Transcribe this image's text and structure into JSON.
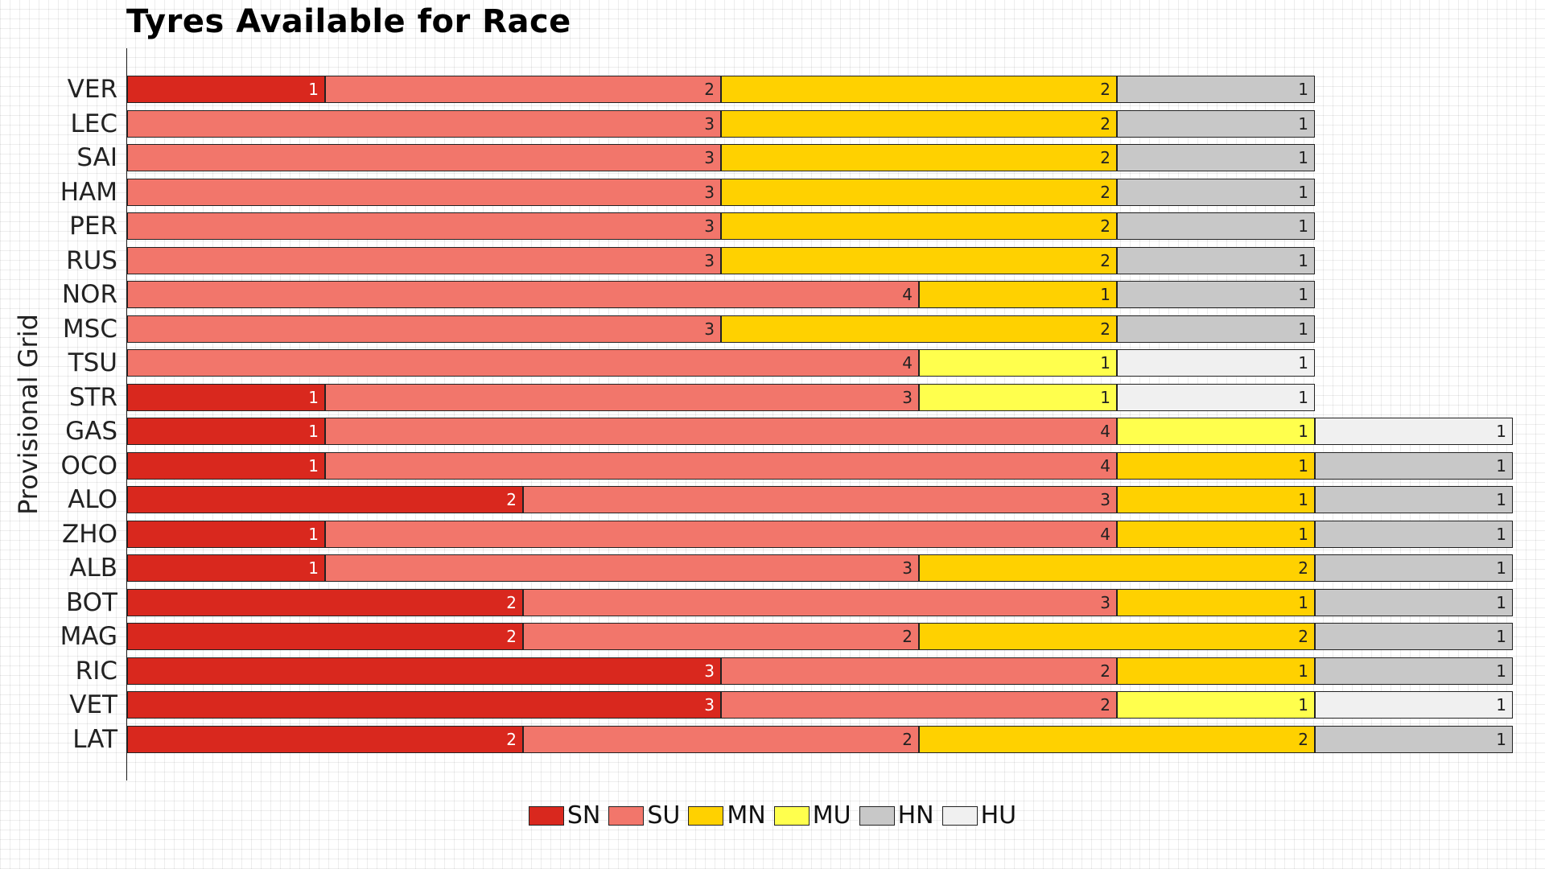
{
  "chart_data": {
    "type": "bar",
    "orientation": "horizontal-stacked",
    "title": "Tyres Available for Race",
    "ylabel": "Provisional Grid",
    "xlabel": "",
    "legend": {
      "placement": "bottom",
      "entries": [
        "SN",
        "SU",
        "MN",
        "MU",
        "HN",
        "HU"
      ]
    },
    "colors": {
      "SN": "#d9281e",
      "SU": "#f2766b",
      "MN": "#ffd100",
      "MU": "#ffff4d",
      "HN": "#c8c8c8",
      "HU": "#f0f0f0"
    },
    "xlim": [
      0,
      7
    ],
    "grid": false,
    "categories": [
      "VER",
      "LEC",
      "SAI",
      "HAM",
      "PER",
      "RUS",
      "NOR",
      "MSC",
      "TSU",
      "STR",
      "GAS",
      "OCO",
      "ALO",
      "ZHO",
      "ALB",
      "BOT",
      "MAG",
      "RIC",
      "VET",
      "LAT"
    ],
    "rows": [
      [
        [
          "SN",
          1
        ],
        [
          "SU",
          2
        ],
        [
          "MN",
          2
        ],
        [
          "HN",
          1
        ]
      ],
      [
        [
          "SU",
          3
        ],
        [
          "MN",
          2
        ],
        [
          "HN",
          1
        ]
      ],
      [
        [
          "SU",
          3
        ],
        [
          "MN",
          2
        ],
        [
          "HN",
          1
        ]
      ],
      [
        [
          "SU",
          3
        ],
        [
          "MN",
          2
        ],
        [
          "HN",
          1
        ]
      ],
      [
        [
          "SU",
          3
        ],
        [
          "MN",
          2
        ],
        [
          "HN",
          1
        ]
      ],
      [
        [
          "SU",
          3
        ],
        [
          "MN",
          2
        ],
        [
          "HN",
          1
        ]
      ],
      [
        [
          "SU",
          4
        ],
        [
          "MN",
          1
        ],
        [
          "HN",
          1
        ]
      ],
      [
        [
          "SU",
          3
        ],
        [
          "MN",
          2
        ],
        [
          "HN",
          1
        ]
      ],
      [
        [
          "SU",
          4
        ],
        [
          "MU",
          1
        ],
        [
          "HU",
          1
        ]
      ],
      [
        [
          "SN",
          1
        ],
        [
          "SU",
          3
        ],
        [
          "MU",
          1
        ],
        [
          "HU",
          1
        ]
      ],
      [
        [
          "SN",
          1
        ],
        [
          "SU",
          4
        ],
        [
          "MU",
          1
        ],
        [
          "HU",
          1
        ]
      ],
      [
        [
          "SN",
          1
        ],
        [
          "SU",
          4
        ],
        [
          "MN",
          1
        ],
        [
          "HN",
          1
        ]
      ],
      [
        [
          "SN",
          2
        ],
        [
          "SU",
          3
        ],
        [
          "MN",
          1
        ],
        [
          "HN",
          1
        ]
      ],
      [
        [
          "SN",
          1
        ],
        [
          "SU",
          4
        ],
        [
          "MN",
          1
        ],
        [
          "HN",
          1
        ]
      ],
      [
        [
          "SN",
          1
        ],
        [
          "SU",
          3
        ],
        [
          "MN",
          2
        ],
        [
          "HN",
          1
        ]
      ],
      [
        [
          "SN",
          2
        ],
        [
          "SU",
          3
        ],
        [
          "MN",
          1
        ],
        [
          "HN",
          1
        ]
      ],
      [
        [
          "SN",
          2
        ],
        [
          "SU",
          2
        ],
        [
          "MN",
          2
        ],
        [
          "HN",
          1
        ]
      ],
      [
        [
          "SN",
          3
        ],
        [
          "SU",
          2
        ],
        [
          "MN",
          1
        ],
        [
          "HN",
          1
        ]
      ],
      [
        [
          "SN",
          3
        ],
        [
          "SU",
          2
        ],
        [
          "MU",
          1
        ],
        [
          "HU",
          1
        ]
      ],
      [
        [
          "SN",
          2
        ],
        [
          "SU",
          2
        ],
        [
          "MN",
          2
        ],
        [
          "HN",
          1
        ]
      ]
    ]
  }
}
